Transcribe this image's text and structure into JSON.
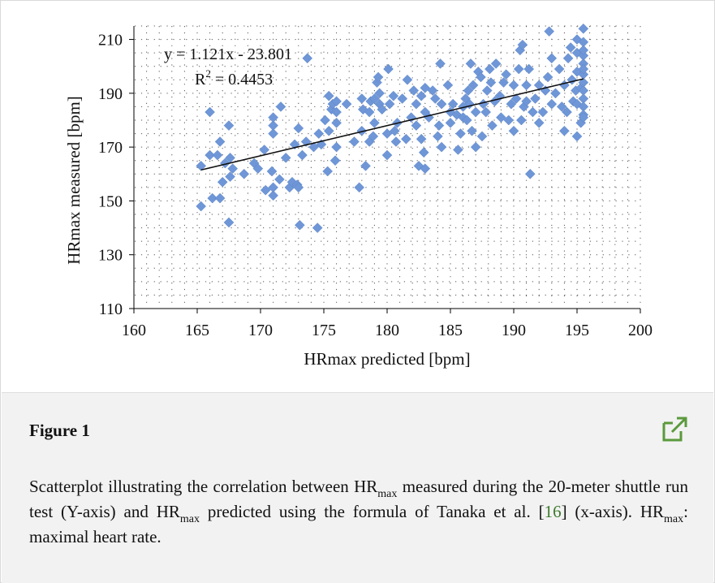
{
  "chart_data": {
    "type": "scatter",
    "title": "",
    "xlabel": "HRmax predicted [bpm]",
    "ylabel": "HRmax measured [bpm]",
    "xlim": [
      160,
      200
    ],
    "ylim": [
      110,
      215
    ],
    "x_ticks": [
      "160",
      "165",
      "170",
      "175",
      "180",
      "185",
      "190",
      "195",
      "200"
    ],
    "y_ticks": [
      "110",
      "130",
      "150",
      "170",
      "190",
      "210"
    ],
    "grid": "dotted",
    "trendline": {
      "slope": 1.121,
      "intercept": -23.801,
      "x_range": [
        165.3,
        195.5
      ],
      "equation": "y = 1.121x - 23.801",
      "r2_label": "R",
      "r2_sup": "2",
      "r2_value": " = 0.4453"
    },
    "marker_color": "#6f97d8",
    "points": [
      [
        165.3,
        148
      ],
      [
        165.3,
        163
      ],
      [
        166,
        183
      ],
      [
        166,
        167
      ],
      [
        166.2,
        151
      ],
      [
        166.6,
        167
      ],
      [
        166.8,
        172
      ],
      [
        166.8,
        151
      ],
      [
        167,
        157
      ],
      [
        167.2,
        164
      ],
      [
        167.5,
        178
      ],
      [
        167.5,
        142
      ],
      [
        167.6,
        166
      ],
      [
        167.6,
        159
      ],
      [
        167.8,
        162
      ],
      [
        168.7,
        160
      ],
      [
        169.5,
        164
      ],
      [
        169.8,
        162
      ],
      [
        170.3,
        169
      ],
      [
        170.4,
        154
      ],
      [
        170.9,
        161
      ],
      [
        171,
        152
      ],
      [
        171,
        155
      ],
      [
        171,
        175
      ],
      [
        171,
        178
      ],
      [
        171,
        181
      ],
      [
        171.5,
        158
      ],
      [
        171.6,
        185
      ],
      [
        172,
        166
      ],
      [
        172.3,
        155
      ],
      [
        172.5,
        157
      ],
      [
        172.7,
        171
      ],
      [
        172.9,
        156
      ],
      [
        173,
        155
      ],
      [
        173,
        177
      ],
      [
        173.1,
        141
      ],
      [
        173.3,
        167
      ],
      [
        173.6,
        172
      ],
      [
        173.7,
        203
      ],
      [
        174.2,
        170
      ],
      [
        174.5,
        140
      ],
      [
        174.6,
        175
      ],
      [
        174.8,
        171
      ],
      [
        175.1,
        180
      ],
      [
        175.3,
        161
      ],
      [
        175.4,
        176
      ],
      [
        175.4,
        189
      ],
      [
        175.6,
        184
      ],
      [
        175.7,
        186
      ],
      [
        175.9,
        165
      ],
      [
        176,
        170
      ],
      [
        176,
        179
      ],
      [
        176,
        183
      ],
      [
        176,
        187
      ],
      [
        176.8,
        186
      ],
      [
        177.4,
        172
      ],
      [
        177.8,
        155
      ],
      [
        178,
        176
      ],
      [
        178,
        188
      ],
      [
        178.1,
        184
      ],
      [
        178.3,
        163
      ],
      [
        178.6,
        172
      ],
      [
        178.6,
        183
      ],
      [
        178.7,
        187
      ],
      [
        178.9,
        174
      ],
      [
        179,
        179
      ],
      [
        179,
        188
      ],
      [
        179.2,
        194
      ],
      [
        179.3,
        196
      ],
      [
        179.4,
        186
      ],
      [
        179.4,
        190
      ],
      [
        179.6,
        184
      ],
      [
        180,
        167
      ],
      [
        180,
        175
      ],
      [
        180.1,
        199
      ],
      [
        180.2,
        186
      ],
      [
        180.5,
        189
      ],
      [
        180.6,
        176
      ],
      [
        180.7,
        172
      ],
      [
        180.8,
        179
      ],
      [
        181.2,
        188
      ],
      [
        181.5,
        173
      ],
      [
        181.6,
        195
      ],
      [
        181.9,
        181
      ],
      [
        182.1,
        191
      ],
      [
        182.3,
        178
      ],
      [
        182.3,
        186
      ],
      [
        182.5,
        163
      ],
      [
        182.7,
        173
      ],
      [
        182.7,
        189
      ],
      [
        182.9,
        168
      ],
      [
        183,
        162
      ],
      [
        183,
        183
      ],
      [
        183,
        192
      ],
      [
        183.3,
        181
      ],
      [
        183.6,
        191
      ],
      [
        183.8,
        188
      ],
      [
        184,
        174
      ],
      [
        184.1,
        178
      ],
      [
        184.2,
        201
      ],
      [
        184.3,
        186
      ],
      [
        184.3,
        170
      ],
      [
        184.8,
        193
      ],
      [
        185,
        183
      ],
      [
        185,
        179
      ],
      [
        185.2,
        186
      ],
      [
        185.5,
        182
      ],
      [
        185.6,
        169
      ],
      [
        185.8,
        175
      ],
      [
        186,
        185
      ],
      [
        186,
        181
      ],
      [
        186.2,
        188
      ],
      [
        186.3,
        180
      ],
      [
        186.4,
        191
      ],
      [
        186.5,
        186
      ],
      [
        186.6,
        201
      ],
      [
        186.7,
        176
      ],
      [
        186.8,
        193
      ],
      [
        187,
        170
      ],
      [
        187,
        183
      ],
      [
        187.2,
        198
      ],
      [
        187.4,
        196
      ],
      [
        187.5,
        174
      ],
      [
        187.6,
        186
      ],
      [
        187.8,
        183
      ],
      [
        187.9,
        191
      ],
      [
        188.1,
        199
      ],
      [
        188.2,
        194
      ],
      [
        188.3,
        178
      ],
      [
        188.5,
        187
      ],
      [
        188.6,
        201
      ],
      [
        188.9,
        189
      ],
      [
        189,
        181
      ],
      [
        189.2,
        194
      ],
      [
        189.4,
        197
      ],
      [
        189.6,
        180
      ],
      [
        189.8,
        186
      ],
      [
        190,
        176
      ],
      [
        190,
        193
      ],
      [
        190.2,
        188
      ],
      [
        190.4,
        199
      ],
      [
        190.5,
        206
      ],
      [
        190.6,
        180
      ],
      [
        190.7,
        208
      ],
      [
        190.8,
        185
      ],
      [
        191,
        187
      ],
      [
        191,
        193
      ],
      [
        191.2,
        199
      ],
      [
        191.3,
        160
      ],
      [
        191.5,
        183
      ],
      [
        191.7,
        188
      ],
      [
        192,
        179
      ],
      [
        192,
        193
      ],
      [
        192.3,
        183
      ],
      [
        192.5,
        191
      ],
      [
        192.7,
        196
      ],
      [
        192.8,
        213
      ],
      [
        193,
        186
      ],
      [
        193,
        203
      ],
      [
        193.3,
        190
      ],
      [
        193.6,
        199
      ],
      [
        193.8,
        185
      ],
      [
        194,
        193
      ],
      [
        194,
        176
      ],
      [
        194.2,
        183
      ],
      [
        194.3,
        203
      ],
      [
        194.5,
        207
      ],
      [
        194.6,
        195
      ],
      [
        194.7,
        187
      ],
      [
        194.9,
        191
      ],
      [
        195,
        174
      ],
      [
        195,
        198
      ],
      [
        195,
        205
      ],
      [
        195,
        210
      ],
      [
        195,
        186
      ],
      [
        195.3,
        192
      ],
      [
        195.3,
        179
      ],
      [
        195.5,
        214
      ],
      [
        195.5,
        209
      ],
      [
        195.5,
        204
      ],
      [
        195.5,
        201
      ],
      [
        195.5,
        197
      ],
      [
        195.5,
        194
      ],
      [
        195.5,
        191
      ],
      [
        195.5,
        188
      ],
      [
        195.5,
        185
      ],
      [
        195.5,
        182
      ],
      [
        195.5,
        181
      ],
      [
        195.5,
        199
      ],
      [
        195.5,
        206
      ]
    ]
  },
  "caption": {
    "figure_label": "Figure 1",
    "part1": "Scatterplot illustrating the correlation between HR",
    "sub1": "max",
    "part2": " measured during the 20-meter shuttle run test (Y-axis) and HR",
    "sub2": "max",
    "part3": " predicted using the formula of Tanaka et al. [",
    "ref": "16",
    "part4": "] (x-axis). HR",
    "sub3": "max",
    "part5": ": maximal heart rate.",
    "link_color": "#5b9a3c"
  }
}
